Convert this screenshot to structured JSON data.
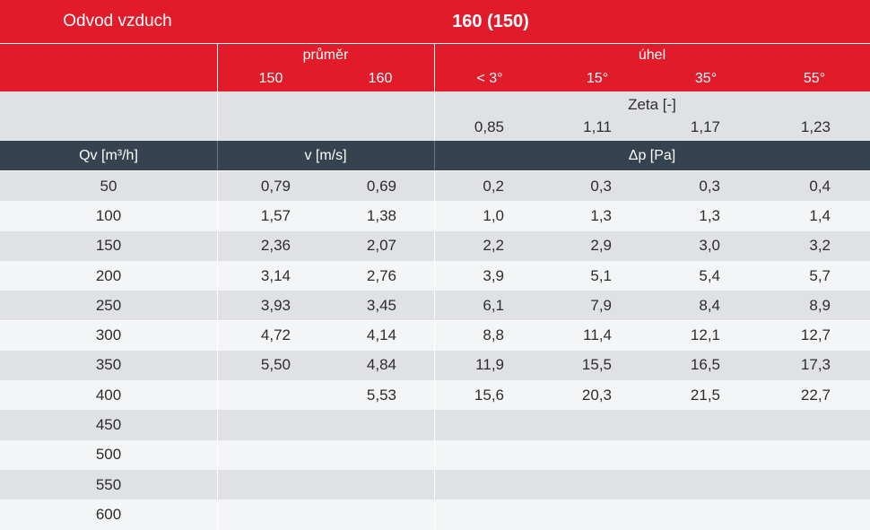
{
  "title": {
    "left": "Odvod vzduch",
    "center": "160 (150)"
  },
  "header": {
    "diameter_label": "průměr",
    "diameter_150": "150",
    "diameter_160": "160",
    "angle_label": "úhel",
    "angle_1": "< 3°",
    "angle_2": "15°",
    "angle_3": "35°",
    "angle_4": "55°"
  },
  "zeta": {
    "label": "Zeta [-]",
    "values": [
      "0,85",
      "1,11",
      "1,17",
      "1,23"
    ]
  },
  "columns": {
    "qv": "Qv [m³/h]",
    "v": "v [m/s]",
    "dp": "Δp [Pa]"
  },
  "colors": {
    "red": "#e21b2a",
    "dark": "#35424f",
    "light_gray": "#dfe1e4",
    "lighter_gray": "#f4f5f6"
  },
  "rows": [
    {
      "qv": "50",
      "v150": "0,79",
      "v160": "0,69",
      "p1": "0,2",
      "p2": "0,3",
      "p3": "0,3",
      "p4": "0,4"
    },
    {
      "qv": "100",
      "v150": "1,57",
      "v160": "1,38",
      "p1": "1,0",
      "p2": "1,3",
      "p3": "1,3",
      "p4": "1,4"
    },
    {
      "qv": "150",
      "v150": "2,36",
      "v160": "2,07",
      "p1": "2,2",
      "p2": "2,9",
      "p3": "3,0",
      "p4": "3,2"
    },
    {
      "qv": "200",
      "v150": "3,14",
      "v160": "2,76",
      "p1": "3,9",
      "p2": "5,1",
      "p3": "5,4",
      "p4": "5,7"
    },
    {
      "qv": "250",
      "v150": "3,93",
      "v160": "3,45",
      "p1": "6,1",
      "p2": "7,9",
      "p3": "8,4",
      "p4": "8,9"
    },
    {
      "qv": "300",
      "v150": "4,72",
      "v160": "4,14",
      "p1": "8,8",
      "p2": "11,4",
      "p3": "12,1",
      "p4": "12,7"
    },
    {
      "qv": "350",
      "v150": "5,50",
      "v160": "4,84",
      "p1": "11,9",
      "p2": "15,5",
      "p3": "16,5",
      "p4": "17,3"
    },
    {
      "qv": "400",
      "v150": "",
      "v160": "5,53",
      "p1": "15,6",
      "p2": "20,3",
      "p3": "21,5",
      "p4": "22,7"
    },
    {
      "qv": "450",
      "v150": "",
      "v160": "",
      "p1": "",
      "p2": "",
      "p3": "",
      "p4": ""
    },
    {
      "qv": "500",
      "v150": "",
      "v160": "",
      "p1": "",
      "p2": "",
      "p3": "",
      "p4": ""
    },
    {
      "qv": "550",
      "v150": "",
      "v160": "",
      "p1": "",
      "p2": "",
      "p3": "",
      "p4": ""
    },
    {
      "qv": "600",
      "v150": "",
      "v160": "",
      "p1": "",
      "p2": "",
      "p3": "",
      "p4": ""
    }
  ]
}
